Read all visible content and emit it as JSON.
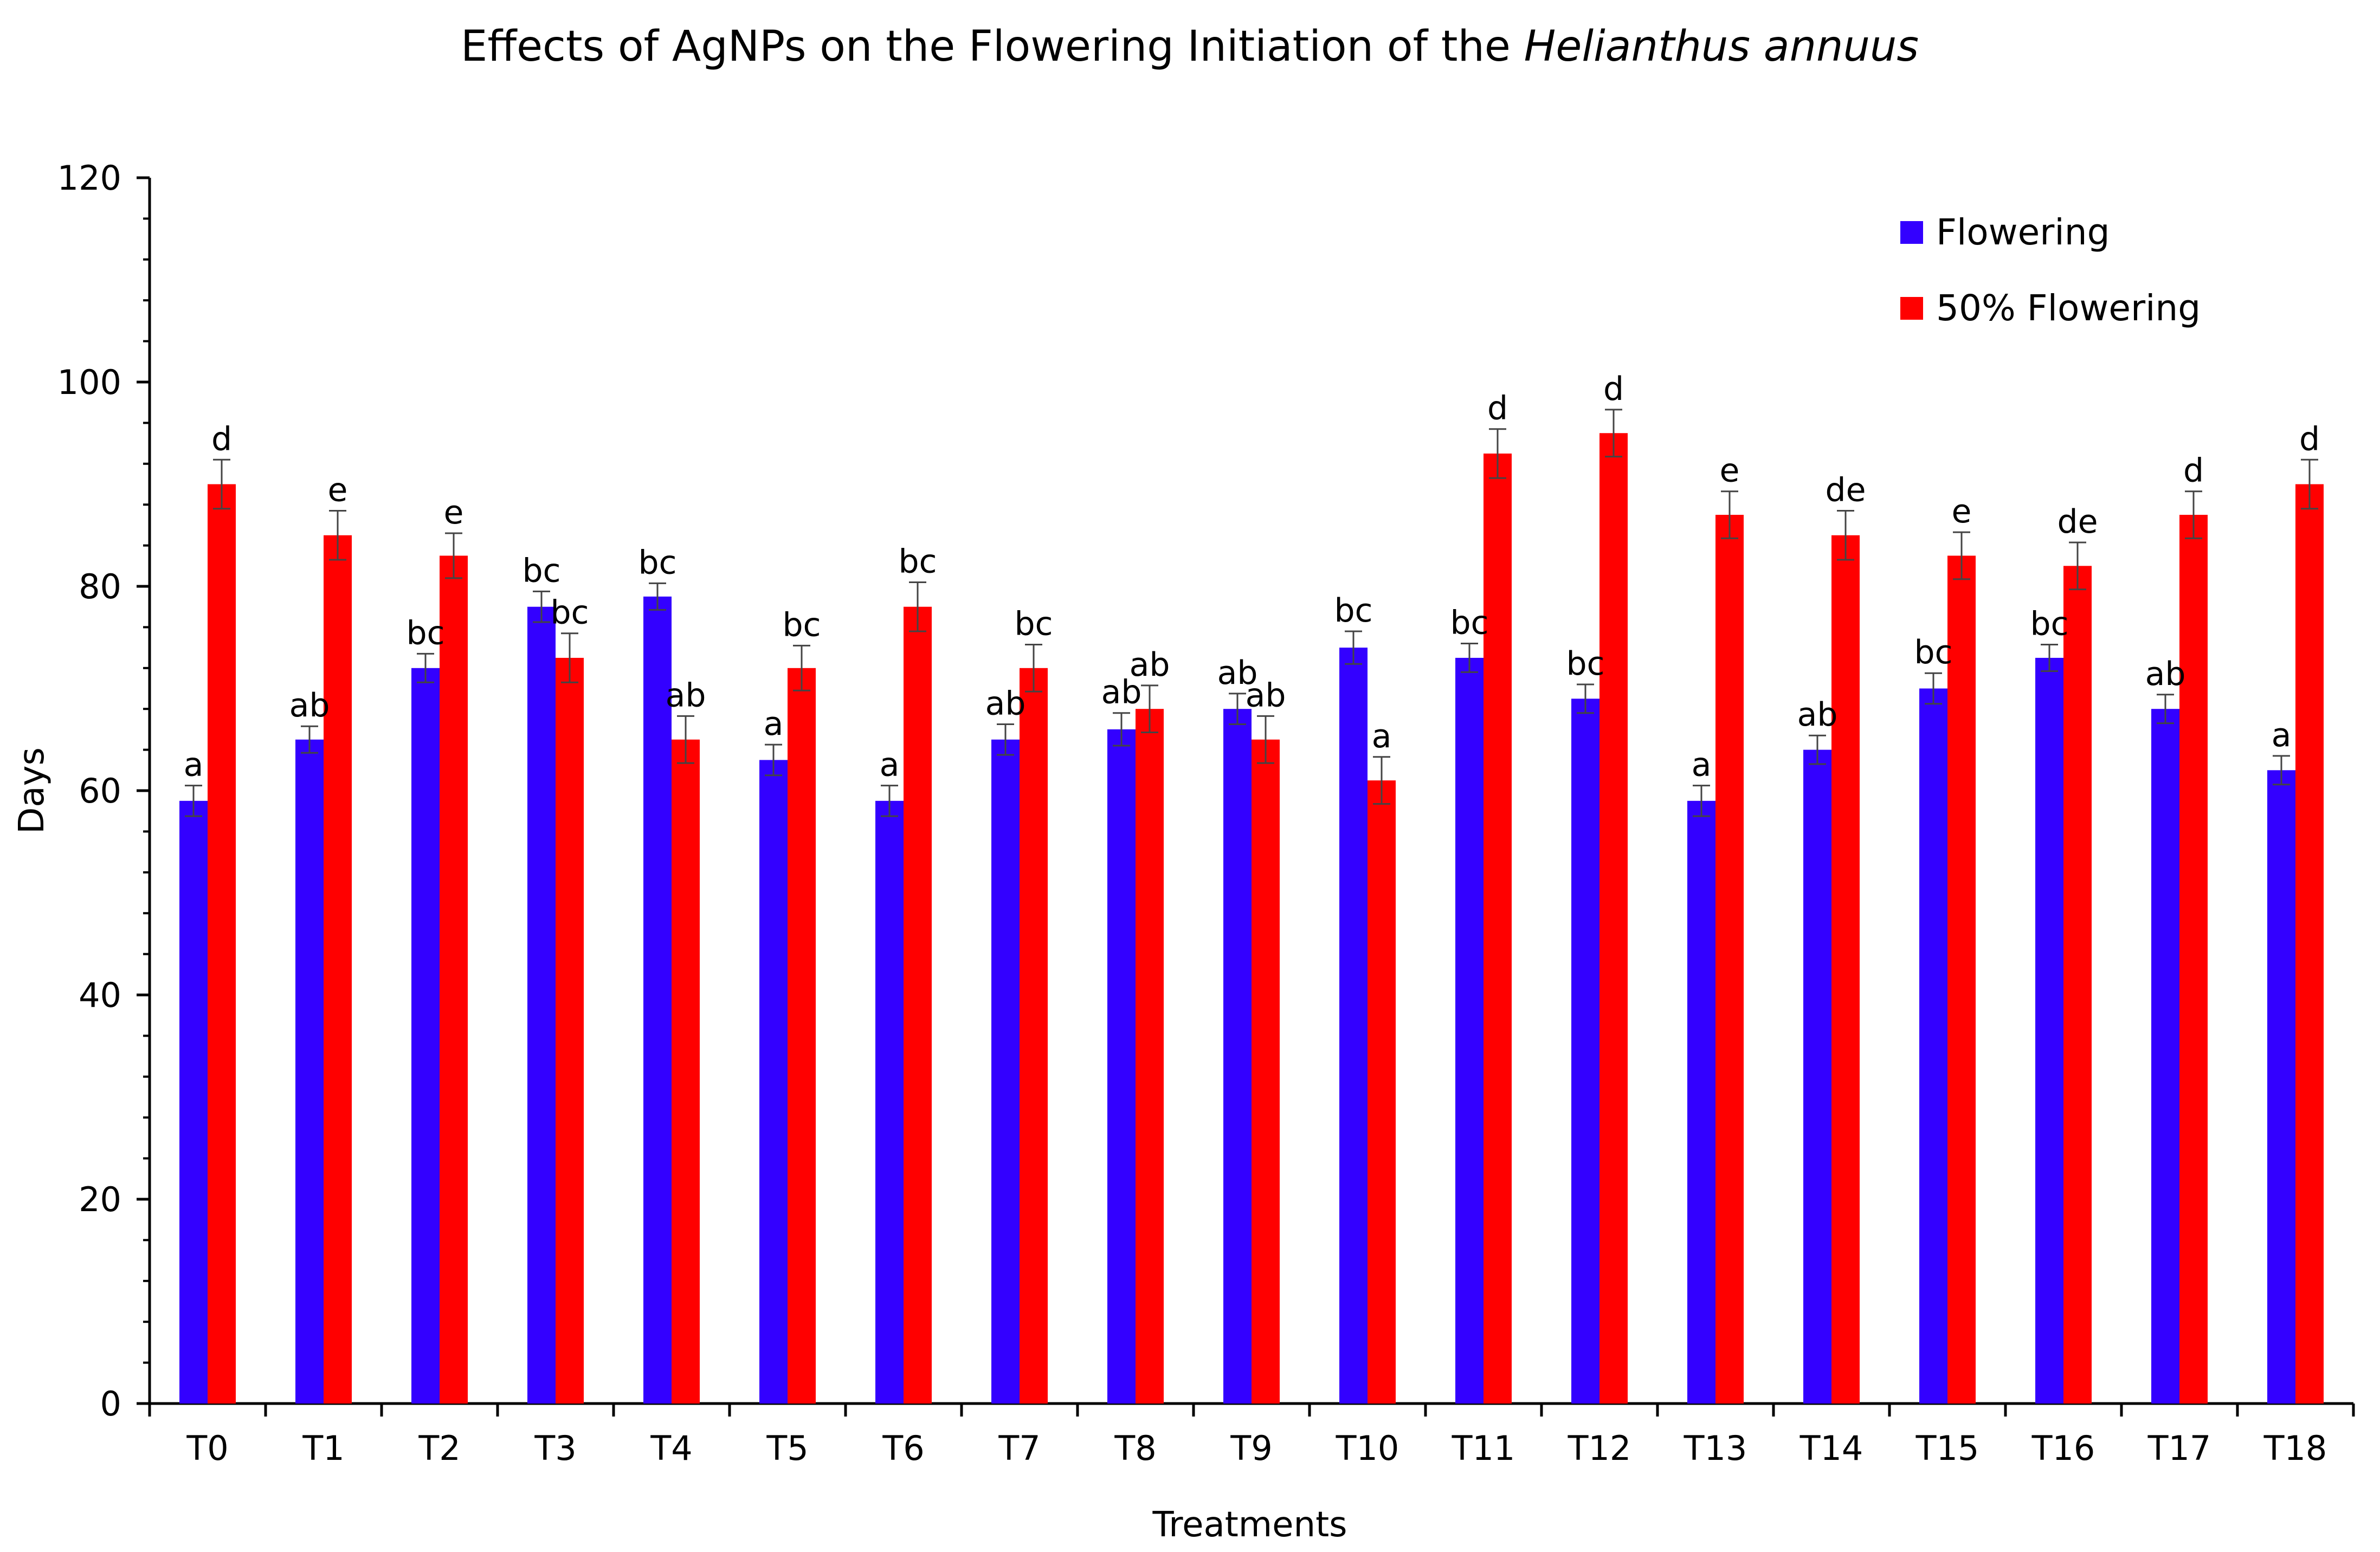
{
  "chart_data": {
    "type": "bar",
    "title": "Effects of AgNPs on the Flowering Initiation of the ",
    "title_italic": "Helianthus annuus",
    "xlabel": "Treatments",
    "ylabel": "Days",
    "ylim": [
      0,
      120
    ],
    "yticks": [
      0,
      20,
      40,
      60,
      80,
      100,
      120
    ],
    "categories": [
      "T0",
      "T1",
      "T2",
      "T3",
      "T4",
      "T5",
      "T6",
      "T7",
      "T8",
      "T9",
      "T10",
      "T11",
      "T12",
      "T13",
      "T14",
      "T15",
      "T16",
      "T17",
      "T18"
    ],
    "legend_position": "top-right",
    "series": [
      {
        "name": "Flowering",
        "color": "#3300ff",
        "values": [
          59,
          65,
          72,
          78,
          79,
          63,
          59,
          65,
          66,
          68,
          74,
          73,
          69,
          59,
          64,
          70,
          73,
          68,
          62
        ],
        "errors": [
          1.5,
          1.3,
          1.4,
          1.5,
          1.3,
          1.5,
          1.5,
          1.5,
          1.6,
          1.5,
          1.6,
          1.4,
          1.4,
          1.5,
          1.4,
          1.5,
          1.3,
          1.4,
          1.4
        ],
        "significance": [
          "a",
          "ab",
          "bc",
          "bc",
          "bc",
          "a",
          "a",
          "ab",
          "ab",
          "ab",
          "bc",
          "bc",
          "bc",
          "a",
          "ab",
          "bc",
          "bc",
          "ab",
          "a"
        ]
      },
      {
        "name": "50% Flowering",
        "color": "#ff0000",
        "values": [
          90,
          85,
          83,
          73,
          65,
          72,
          78,
          72,
          68,
          65,
          61,
          93,
          95,
          87,
          85,
          83,
          82,
          87,
          90
        ],
        "errors": [
          2.4,
          2.4,
          2.2,
          2.4,
          2.3,
          2.2,
          2.4,
          2.3,
          2.3,
          2.3,
          2.3,
          2.4,
          2.3,
          2.3,
          2.4,
          2.3,
          2.3,
          2.3,
          2.4
        ],
        "significance": [
          "d",
          "e",
          "e",
          "bc",
          "ab",
          "bc",
          "bc",
          "bc",
          "ab",
          "ab",
          "a",
          "d",
          "d",
          "e",
          "de",
          "e",
          "de",
          "d",
          "d"
        ]
      }
    ]
  }
}
